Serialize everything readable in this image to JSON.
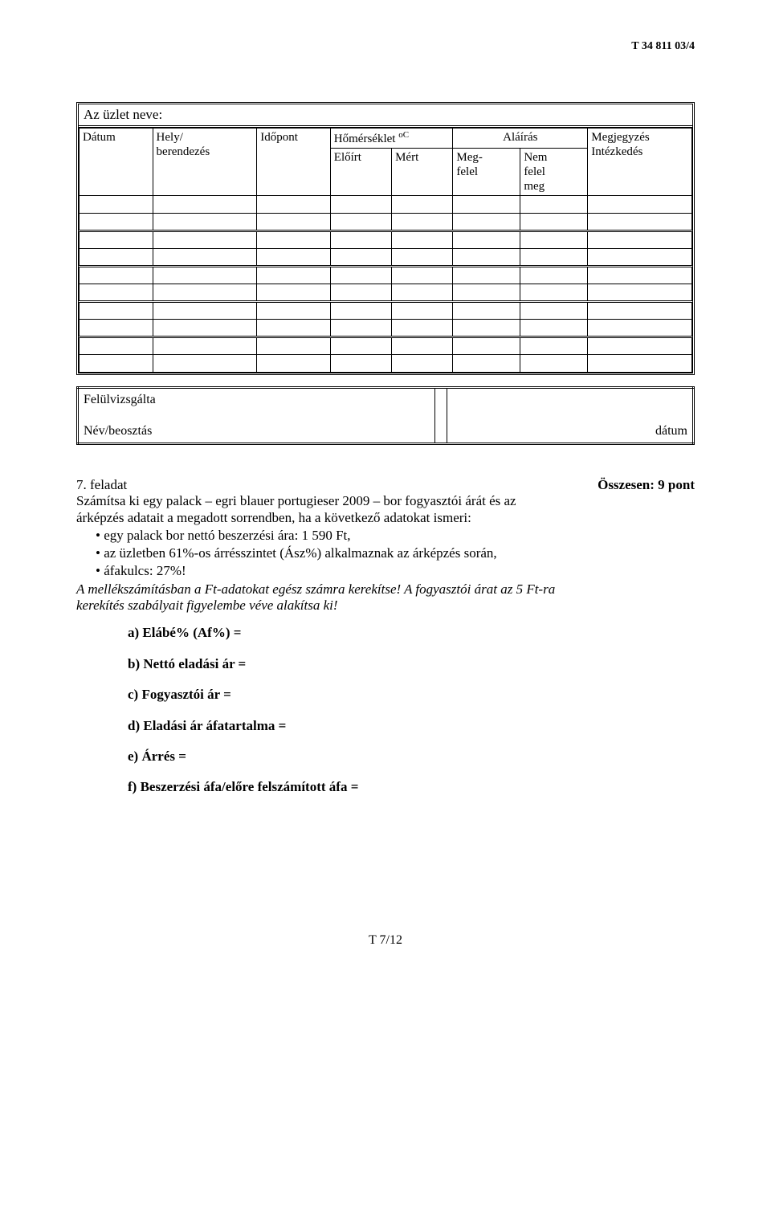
{
  "doc_code": "T 34 811 03/4",
  "shop_label": "Az üzlet neve:",
  "table": {
    "col_widths_pct": [
      12,
      17,
      12,
      10,
      10,
      11,
      11,
      17
    ],
    "headers": {
      "datum": "Dátum",
      "hely": "Hely/\nberendezés",
      "idopont": "Időpont",
      "homerseklet": "Hőmérséklet ",
      "homerseklet_unit": "oC",
      "eloirat": "Előírt",
      "mert": "Mért",
      "megfelel": "Meg-\nfelel",
      "alairas": "Aláírás",
      "nemfelel": "Nem\nfelel\nmeg",
      "megjegyzes": "Megjegyzés\nIntézkedés"
    },
    "body_sections": 5,
    "rows_per_section": 2
  },
  "footer": {
    "felul": "Felülvizsgálta",
    "nev": "Név/beosztás",
    "datum": "dátum"
  },
  "task": {
    "number": "7. feladat",
    "points": "Összesen: 9 pont",
    "intro_l1": "Számítsa ki egy palack – egri blauer portugieser 2009 – bor fogyasztói árát és az",
    "intro_l2": "árképzés adatait a megadott sorrendben, ha a következő adatokat ismeri:",
    "bullets": [
      "egy palack bor nettó beszerzési ára: 1 590 Ft,",
      "az üzletben 61%-os árrésszintet (Ász%) alkalmaznak az árképzés során,",
      "áfakulcs: 27%!"
    ],
    "note_l1": "A mellékszámításban a Ft-adatokat egész számra kerekítse! A fogyasztói árat az 5 Ft-ra",
    "note_l2": "kerekítés szabályait figyelembe véve alakítsa ki!",
    "answers": {
      "a": "a)  Elábé% (Af%) =",
      "b": "b)  Nettó eladási ár =",
      "c": "c)  Fogyasztói ár =",
      "d": "d)  Eladási ár áfatartalma =",
      "e": "e)  Árrés =",
      "f": "f) Beszerzési áfa/előre felszámított áfa ="
    }
  },
  "page_num": "T 7/12"
}
